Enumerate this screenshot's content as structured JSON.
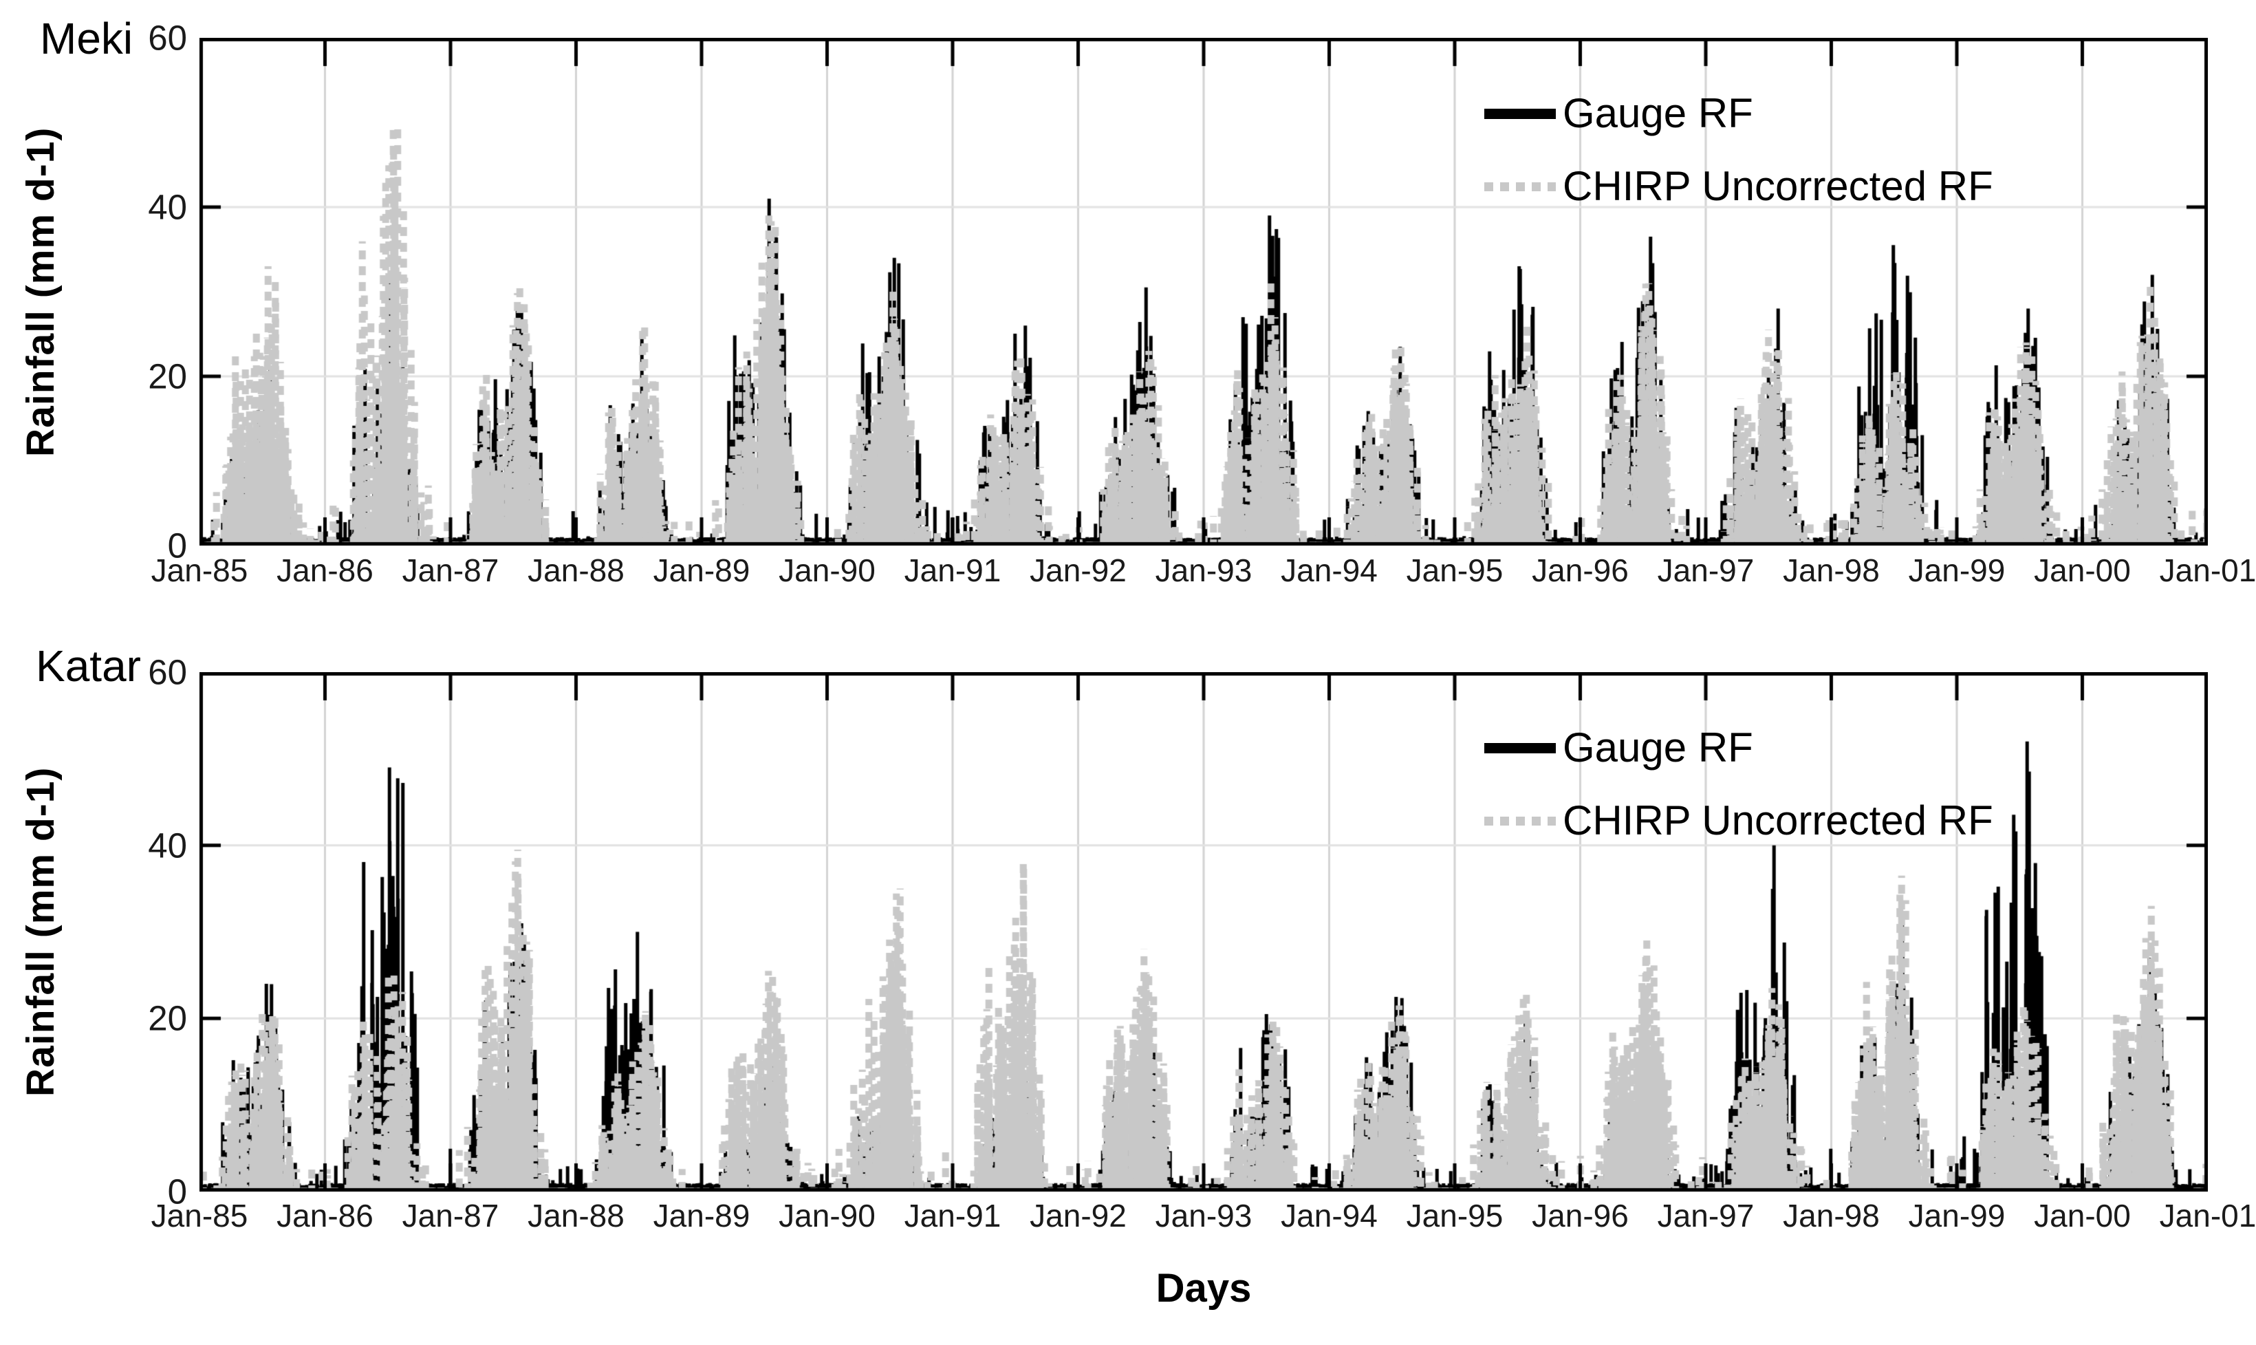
{
  "figure": {
    "xlabel": "Days",
    "background_color": "#ffffff",
    "frame_color": "#000000",
    "tick_label_color": "#1a1a1a",
    "grid_color_vertical": "#d4d4d4",
    "grid_color_horizontal": "#e2e2e2"
  },
  "chart_data": [
    {
      "type": "line",
      "title": "Meki",
      "ylabel": "Rainfall (mm d-1)",
      "xlabel": "Days",
      "ylim": [
        0,
        60
      ],
      "yticks": [
        0,
        20,
        40,
        60
      ],
      "ytick_labels": [
        "0",
        "20",
        "40",
        "60"
      ],
      "x_tick_labels": [
        "Jan-85",
        "Jan-86",
        "Jan-87",
        "Jan-88",
        "Jan-89",
        "Jan-90",
        "Jan-91",
        "Jan-92",
        "Jan-93",
        "Jan-94",
        "Jan-95",
        "Jan-96",
        "Jan-97",
        "Jan-98",
        "Jan-99",
        "Jan-00",
        "Jan-01"
      ],
      "x_years": [
        1985,
        1986,
        1987,
        1988,
        1989,
        1990,
        1991,
        1992,
        1993,
        1994,
        1995,
        1996,
        1997,
        1998,
        1999,
        2000
      ],
      "grid": true,
      "legend": {
        "position": "upper-right-inside-no-box",
        "entries": [
          "Gauge RF",
          "CHIRP Uncorrected RF"
        ]
      },
      "series": [
        {
          "name": "Gauge RF",
          "line_style": "solid",
          "color": "#000000",
          "annual_max_mm_per_day": [
            21,
            31,
            28.5,
            24.5,
            41,
            34,
            26,
            30.5,
            39,
            23.5,
            33,
            36.5,
            28,
            35.5,
            28,
            32
          ],
          "note": "daily series; annual maxima estimated from figure"
        },
        {
          "name": "CHIRP Uncorrected RF",
          "line_style": "dashed",
          "color": "#c8c8c8",
          "annual_max_mm_per_day": [
            33,
            50,
            30.5,
            26,
            39,
            30,
            22.5,
            23,
            31.5,
            24,
            26,
            31,
            25.5,
            20.5,
            24,
            31
          ],
          "note": "daily series; annual maxima estimated from figure"
        }
      ]
    },
    {
      "type": "line",
      "title": "Katar",
      "ylabel": "Rainfall (mm d-1)",
      "xlabel": "Days",
      "ylim": [
        0,
        60
      ],
      "yticks": [
        0,
        20,
        40,
        60
      ],
      "ytick_labels": [
        "0",
        "20",
        "40",
        "60"
      ],
      "x_tick_labels": [
        "Jan-85",
        "Jan-86",
        "Jan-87",
        "Jan-88",
        "Jan-89",
        "Jan-90",
        "Jan-91",
        "Jan-92",
        "Jan-93",
        "Jan-94",
        "Jan-95",
        "Jan-96",
        "Jan-97",
        "Jan-98",
        "Jan-99",
        "Jan-00",
        "Jan-01"
      ],
      "x_years": [
        1985,
        1986,
        1987,
        1988,
        1989,
        1990,
        1991,
        1992,
        1993,
        1994,
        1995,
        1996,
        1997,
        1998,
        1999,
        2000
      ],
      "grid": true,
      "legend": {
        "position": "upper-right-inside-no-box",
        "entries": [
          "Gauge RF",
          "CHIRP Uncorrected RF"
        ]
      },
      "series": [
        {
          "name": "Gauge RF",
          "line_style": "solid",
          "color": "#000000",
          "annual_max_mm_per_day": [
            24,
            49,
            31,
            30,
            15,
            13.5,
            13,
            17,
            20.5,
            22.5,
            19.5,
            14,
            40,
            31.5,
            52,
            27
          ],
          "note": "daily series; annual maxima estimated from figure"
        },
        {
          "name": "CHIRP Uncorrected RF",
          "line_style": "dashed",
          "color": "#c8c8c8",
          "annual_max_mm_per_day": [
            21,
            25.5,
            39.5,
            21,
            25.5,
            35,
            38,
            28,
            20,
            21.5,
            23.5,
            29,
            23.5,
            36.5,
            21.5,
            33
          ],
          "note": "daily series; annual maxima estimated from figure"
        }
      ]
    }
  ]
}
